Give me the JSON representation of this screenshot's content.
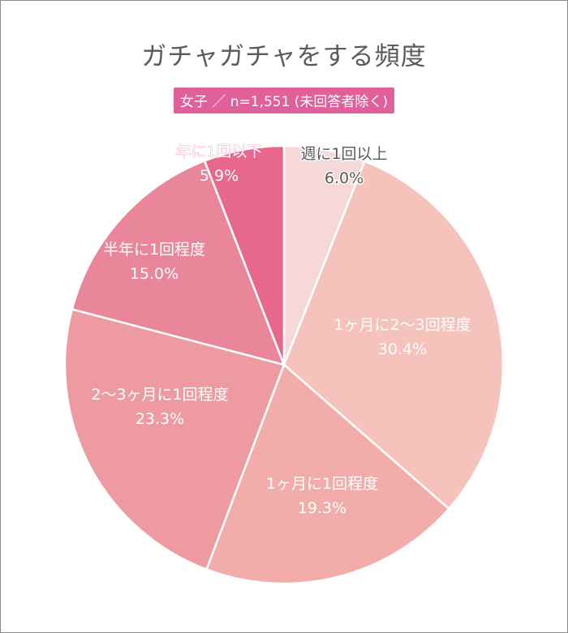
{
  "chart_data": {
    "type": "pie",
    "title": "ガチャガチャをする頻度",
    "subtitle": "女子 ／ n=1,551 (未回答者除く)",
    "categories": [
      "週に1回以上",
      "1ヶ月に2〜3回程度",
      "1ヶ月に1回程度",
      "2〜3ヶ月に1回程度",
      "半年に1回程度",
      "年に1回以下"
    ],
    "values": [
      6.0,
      30.4,
      19.3,
      23.3,
      15.0,
      5.9
    ],
    "value_labels": [
      "6.0%",
      "30.4%",
      "19.3%",
      "23.3%",
      "15.0%",
      "5.9%"
    ],
    "colors": [
      "#f6d8d9",
      "#f5c3bb",
      "#f2adab",
      "#ee9aa1",
      "#ea869a",
      "#e8688d"
    ],
    "label_colors": [
      "#5a5a5a",
      "#ffffff",
      "#ffffff",
      "#ffffff",
      "#ffffff",
      "#ffffff"
    ]
  }
}
